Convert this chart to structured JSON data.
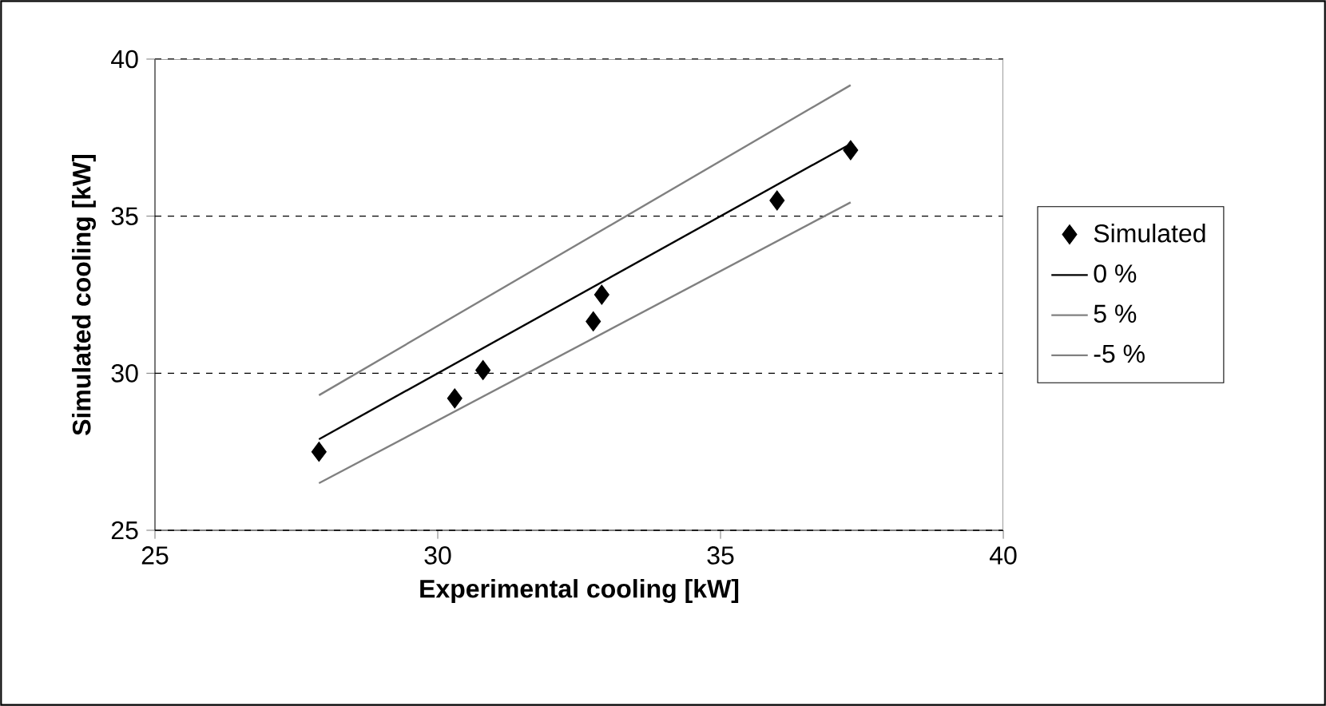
{
  "chart_data": {
    "type": "scatter",
    "xlabel": "Experimental cooling [kW]",
    "ylabel": "Simulated cooling [kW]",
    "xlim": [
      25,
      40
    ],
    "ylim": [
      25,
      40
    ],
    "xticks": [
      25,
      30,
      35,
      40
    ],
    "yticks": [
      25,
      30,
      35,
      40
    ],
    "grid": "y",
    "legend": "right",
    "marker": "diamond",
    "series": [
      {
        "name": "Simulated",
        "color": "#000000",
        "x": [
          27.9,
          30.3,
          30.8,
          32.75,
          32.9,
          36.0,
          37.3
        ],
        "values": [
          27.5,
          29.2,
          30.1,
          31.65,
          32.5,
          35.5,
          37.1
        ]
      },
      {
        "name": "0 %",
        "type": "line",
        "marker": "none",
        "color": "#000000",
        "x": [
          27.9,
          37.3
        ],
        "values": [
          27.9,
          37.3
        ]
      },
      {
        "name": "5 %",
        "type": "line",
        "marker": "none",
        "color": "#808080",
        "x": [
          27.9,
          37.3
        ],
        "values": [
          29.3,
          39.17
        ]
      },
      {
        "name": "-5 %",
        "type": "line",
        "marker": "none",
        "color": "#808080",
        "x": [
          27.9,
          37.3
        ],
        "values": [
          26.5,
          35.44
        ]
      }
    ]
  }
}
